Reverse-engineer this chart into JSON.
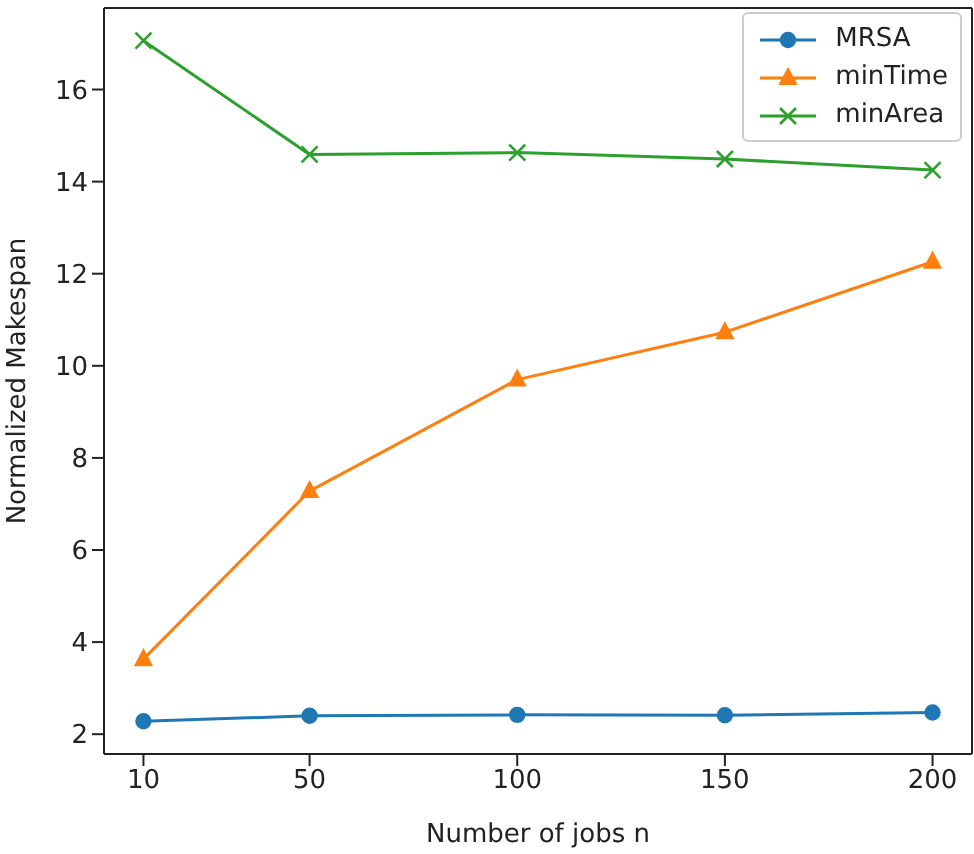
{
  "chart_data": {
    "type": "line",
    "xlabel": "Number of jobs n",
    "ylabel": "Normalized Makespan",
    "x": [
      10,
      50,
      100,
      150,
      200
    ],
    "series": [
      {
        "name": "MRSA",
        "color": "#1f77b4",
        "marker": "circle",
        "values": [
          2.28,
          2.4,
          2.42,
          2.41,
          2.47
        ]
      },
      {
        "name": "minTime",
        "color": "#ff7f0e",
        "marker": "triangle",
        "values": [
          3.63,
          7.28,
          9.7,
          10.73,
          12.26
        ]
      },
      {
        "name": "minArea",
        "color": "#2ca02c",
        "marker": "cross",
        "values": [
          17.06,
          14.59,
          14.63,
          14.49,
          14.25
        ]
      }
    ],
    "xlim": [
      0.5,
      209.5
    ],
    "xticks": [
      10,
      50,
      100,
      150,
      200
    ],
    "ylim": [
      1.57,
      17.77
    ],
    "yticks": [
      2,
      4,
      6,
      8,
      10,
      12,
      14,
      16
    ],
    "grid": false,
    "legend": "top right",
    "line_style": "solid"
  }
}
